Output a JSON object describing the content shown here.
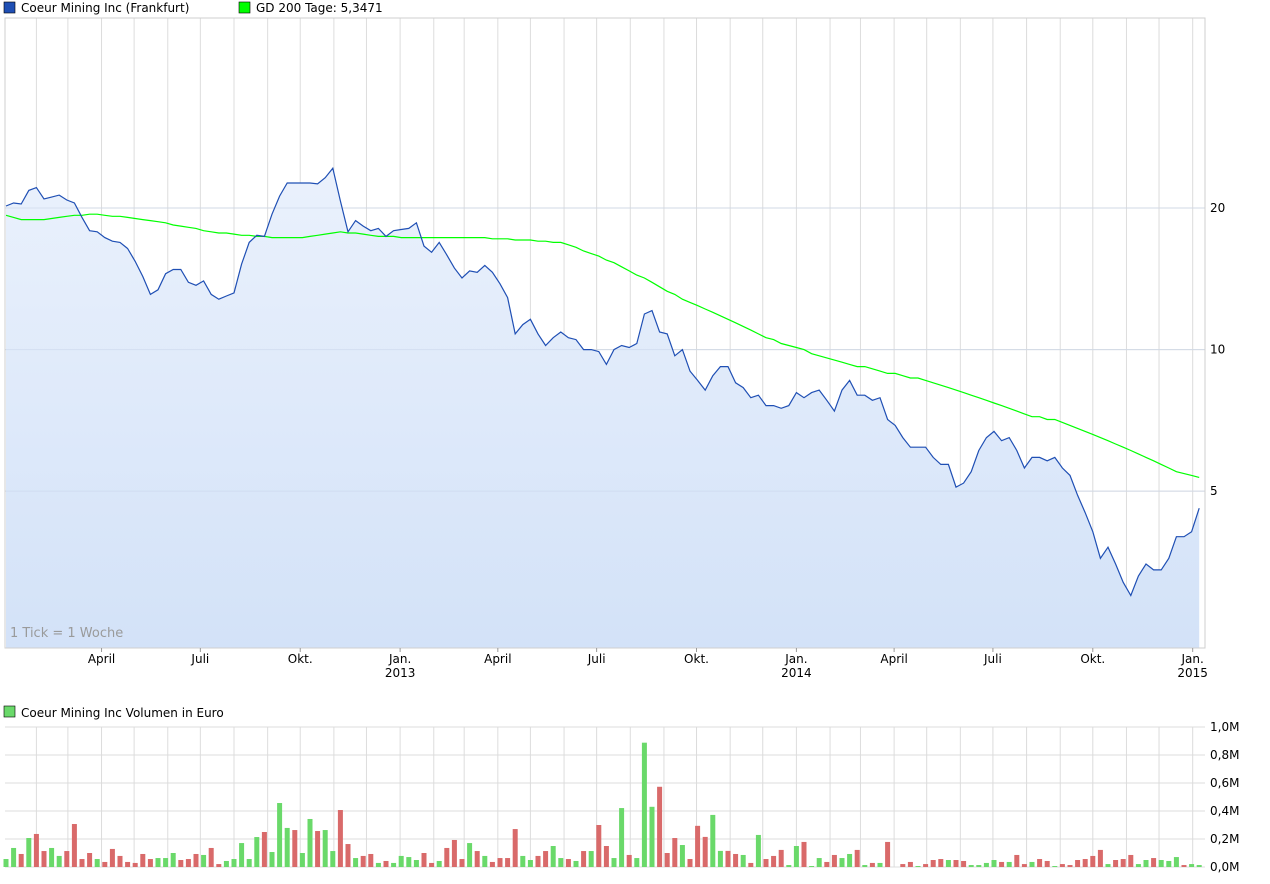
{
  "chart_data": [
    {
      "type": "line",
      "legend": [
        {
          "name": "Coeur Mining Inc (Frankfurt)",
          "color": "#1f4fb4"
        },
        {
          "name": "GD 200 Tage: 5,3471",
          "color": "#00ff00"
        }
      ],
      "note": "1 Tick = 1 Woche",
      "y_scale": "log",
      "y_ticks": [
        {
          "value": 20,
          "label": "20"
        },
        {
          "value": 10,
          "label": "10"
        },
        {
          "value": 5,
          "label": "5"
        }
      ],
      "ylim": [
        2.32,
        50.7
      ],
      "x_ticks": [
        {
          "date": "2012-04-01",
          "label": "April",
          "year": ""
        },
        {
          "date": "2012-07-01",
          "label": "Juli",
          "year": ""
        },
        {
          "date": "2012-10-01",
          "label": "Okt.",
          "year": ""
        },
        {
          "date": "2013-01-01",
          "label": "Jan.",
          "year": "2013"
        },
        {
          "date": "2013-04-01",
          "label": "April",
          "year": ""
        },
        {
          "date": "2013-07-01",
          "label": "Juli",
          "year": ""
        },
        {
          "date": "2013-10-01",
          "label": "Okt.",
          "year": ""
        },
        {
          "date": "2014-01-01",
          "label": "Jan.",
          "year": "2014"
        },
        {
          "date": "2014-04-01",
          "label": "April",
          "year": ""
        },
        {
          "date": "2014-07-01",
          "label": "Juli",
          "year": ""
        },
        {
          "date": "2014-10-01",
          "label": "Okt.",
          "year": ""
        },
        {
          "date": "2015-01-01",
          "label": "Jan.",
          "year": "2015"
        }
      ],
      "grid": true,
      "series": [
        {
          "name": "Coeur Mining Inc (Frankfurt)",
          "color": "#1f4fb4",
          "area": true,
          "values": [
            20.2,
            20.5,
            20.4,
            21.8,
            22.1,
            20.9,
            21.1,
            21.3,
            20.8,
            20.5,
            19.1,
            17.9,
            17.8,
            17.3,
            17.0,
            16.9,
            16.4,
            15.4,
            14.3,
            13.1,
            13.4,
            14.5,
            14.8,
            14.8,
            13.9,
            13.7,
            14.0,
            13.1,
            12.8,
            13.0,
            13.2,
            15.2,
            16.9,
            17.5,
            17.4,
            19.4,
            21.2,
            22.6,
            22.6,
            22.6,
            22.6,
            22.5,
            23.2,
            24.3,
            20.7,
            17.8,
            18.8,
            18.3,
            17.9,
            18.1,
            17.4,
            17.9,
            18.0,
            18.1,
            18.6,
            16.6,
            16.1,
            16.9,
            15.9,
            14.9,
            14.2,
            14.7,
            14.6,
            15.1,
            14.6,
            13.8,
            12.9,
            10.8,
            11.3,
            11.6,
            10.8,
            10.2,
            10.6,
            10.9,
            10.6,
            10.5,
            10.0,
            10.0,
            9.9,
            9.3,
            10.0,
            10.2,
            10.1,
            10.3,
            11.9,
            12.1,
            10.9,
            10.8,
            9.7,
            10.0,
            9.0,
            8.6,
            8.2,
            8.8,
            9.2,
            9.2,
            8.5,
            8.3,
            7.9,
            8.0,
            7.6,
            7.6,
            7.5,
            7.6,
            8.1,
            7.9,
            8.1,
            8.2,
            7.8,
            7.4,
            8.2,
            8.6,
            8.0,
            8.0,
            7.8,
            7.9,
            7.1,
            6.9,
            6.5,
            6.2,
            6.2,
            6.2,
            5.9,
            5.7,
            5.7,
            5.1,
            5.2,
            5.5,
            6.1,
            6.5,
            6.7,
            6.4,
            6.5,
            6.1,
            5.6,
            5.9,
            5.9,
            5.8,
            5.9,
            5.6,
            5.4,
            4.9,
            4.5,
            4.1,
            3.6,
            3.8,
            3.5,
            3.2,
            3.0,
            3.3,
            3.5,
            3.4,
            3.4,
            3.6,
            4.0,
            4.0,
            4.1,
            4.6
          ]
        },
        {
          "name": "GD 200 Tage",
          "color": "#00ff00",
          "area": false,
          "values": [
            19.3,
            19.1,
            18.9,
            18.9,
            18.9,
            18.9,
            19.0,
            19.1,
            19.2,
            19.3,
            19.3,
            19.4,
            19.4,
            19.3,
            19.2,
            19.2,
            19.1,
            19.0,
            18.9,
            18.8,
            18.7,
            18.6,
            18.4,
            18.3,
            18.2,
            18.1,
            17.9,
            17.8,
            17.7,
            17.7,
            17.6,
            17.5,
            17.5,
            17.4,
            17.4,
            17.3,
            17.3,
            17.3,
            17.3,
            17.3,
            17.4,
            17.5,
            17.6,
            17.7,
            17.8,
            17.7,
            17.7,
            17.6,
            17.5,
            17.4,
            17.4,
            17.4,
            17.3,
            17.3,
            17.3,
            17.3,
            17.3,
            17.3,
            17.3,
            17.3,
            17.3,
            17.3,
            17.3,
            17.3,
            17.2,
            17.2,
            17.2,
            17.1,
            17.1,
            17.1,
            17.0,
            17.0,
            16.9,
            16.9,
            16.7,
            16.5,
            16.2,
            16.0,
            15.8,
            15.5,
            15.3,
            15.0,
            14.7,
            14.4,
            14.2,
            13.9,
            13.6,
            13.3,
            13.1,
            12.8,
            12.6,
            12.4,
            12.2,
            12.0,
            11.8,
            11.6,
            11.4,
            11.2,
            11.0,
            10.8,
            10.6,
            10.5,
            10.3,
            10.2,
            10.1,
            10.0,
            9.8,
            9.7,
            9.6,
            9.5,
            9.4,
            9.3,
            9.2,
            9.2,
            9.1,
            9.0,
            8.9,
            8.9,
            8.8,
            8.7,
            8.7,
            8.6,
            8.5,
            8.4,
            8.3,
            8.2,
            8.1,
            8.0,
            7.9,
            7.8,
            7.7,
            7.6,
            7.5,
            7.4,
            7.3,
            7.2,
            7.2,
            7.1,
            7.1,
            7.0,
            6.9,
            6.8,
            6.7,
            6.6,
            6.5,
            6.4,
            6.3,
            6.2,
            6.1,
            6.0,
            5.9,
            5.8,
            5.7,
            5.6,
            5.5,
            5.45,
            5.4,
            5.3471
          ]
        }
      ]
    },
    {
      "type": "bar",
      "legend": [
        {
          "name": "Coeur Mining Inc Volumen in Euro",
          "color": "#6ad96a"
        }
      ],
      "ylim": [
        0,
        1.0
      ],
      "y_unit": "M",
      "y_ticks": [
        {
          "value": 0,
          "label": "0,0M"
        },
        {
          "value": 0.2,
          "label": "0,2M"
        },
        {
          "value": 0.4,
          "label": "0,4M"
        },
        {
          "value": 0.6,
          "label": "0,6M"
        },
        {
          "value": 0.8,
          "label": "0,8M"
        },
        {
          "value": 1.0,
          "label": "1,0M"
        }
      ],
      "colors": {
        "up": "#6ad96a",
        "down": "#d96a6a"
      },
      "values": [
        0.057,
        0.136,
        0.093,
        0.207,
        0.236,
        0.114,
        0.136,
        0.079,
        0.114,
        0.307,
        0.057,
        0.1,
        0.057,
        0.036,
        0.129,
        0.079,
        0.036,
        0.029,
        0.093,
        0.057,
        0.064,
        0.064,
        0.1,
        0.05,
        0.057,
        0.093,
        0.086,
        0.136,
        0.021,
        0.043,
        0.057,
        0.171,
        0.057,
        0.214,
        0.25,
        0.107,
        0.457,
        0.279,
        0.264,
        0.1,
        0.343,
        0.257,
        0.264,
        0.114,
        0.407,
        0.164,
        0.064,
        0.079,
        0.093,
        0.029,
        0.043,
        0.029,
        0.079,
        0.071,
        0.05,
        0.1,
        0.029,
        0.043,
        0.136,
        0.193,
        0.057,
        0.171,
        0.114,
        0.079,
        0.036,
        0.064,
        0.064,
        0.271,
        0.079,
        0.05,
        0.079,
        0.114,
        0.15,
        0.064,
        0.057,
        0.043,
        0.114,
        0.114,
        0.3,
        0.15,
        0.064,
        0.421,
        0.086,
        0.064,
        0.888,
        0.43,
        0.573,
        0.1,
        0.207,
        0.157,
        0.057,
        0.294,
        0.215,
        0.372,
        0.115,
        0.115,
        0.093,
        0.086,
        0.029,
        0.229,
        0.057,
        0.079,
        0.122,
        0.014,
        0.15,
        0.179,
        0.007,
        0.064,
        0.036,
        0.086,
        0.064,
        0.093,
        0.122,
        0.014,
        0.029,
        0.029,
        0.179,
        0,
        0.021,
        0.036,
        0.007,
        0.021,
        0.05,
        0.057,
        0.05,
        0.05,
        0.043,
        0.014,
        0.014,
        0.029,
        0.05,
        0.036,
        0.036,
        0.086,
        0.021,
        0.036,
        0.057,
        0.043,
        0.007,
        0.021,
        0.014,
        0.05,
        0.057,
        0.079,
        0.122,
        0.021,
        0.05,
        0.057,
        0.086,
        0.021,
        0.05,
        0.064,
        0.05,
        0.043,
        0.071,
        0.014,
        0.021,
        0.014
      ],
      "direction": [
        "up",
        "up",
        "down",
        "up",
        "down",
        "down",
        "up",
        "up",
        "down",
        "down",
        "down",
        "down",
        "up",
        "down",
        "down",
        "down",
        "down",
        "down",
        "down",
        "down",
        "up",
        "up",
        "up",
        "down",
        "down",
        "down",
        "up",
        "down",
        "down",
        "up",
        "up",
        "up",
        "up",
        "up",
        "down",
        "up",
        "up",
        "up",
        "down",
        "up",
        "up",
        "down",
        "up",
        "up",
        "down",
        "down",
        "up",
        "down",
        "down",
        "up",
        "down",
        "up",
        "up",
        "up",
        "up",
        "down",
        "down",
        "up",
        "down",
        "down",
        "down",
        "up",
        "down",
        "up",
        "down",
        "down",
        "down",
        "down",
        "up",
        "up",
        "down",
        "down",
        "up",
        "up",
        "down",
        "up",
        "down",
        "up",
        "down",
        "down",
        "up",
        "up",
        "down",
        "up",
        "up",
        "up",
        "down",
        "down",
        "down",
        "up",
        "down",
        "down",
        "down",
        "up",
        "up",
        "down",
        "down",
        "up",
        "down",
        "up",
        "down",
        "down",
        "down",
        "up",
        "up",
        "down",
        "up",
        "up",
        "down",
        "down",
        "up",
        "up",
        "down",
        "up",
        "down",
        "up",
        "down",
        "up",
        "down",
        "down",
        "up",
        "down",
        "down",
        "down",
        "up",
        "down",
        "down",
        "up",
        "up",
        "up",
        "up",
        "down",
        "up",
        "down",
        "down",
        "up",
        "down",
        "down",
        "up",
        "down",
        "down",
        "down",
        "down",
        "down",
        "down",
        "up",
        "down",
        "down",
        "down",
        "up",
        "up",
        "down",
        "up",
        "up",
        "up",
        "down",
        "up",
        "up"
      ]
    }
  ]
}
